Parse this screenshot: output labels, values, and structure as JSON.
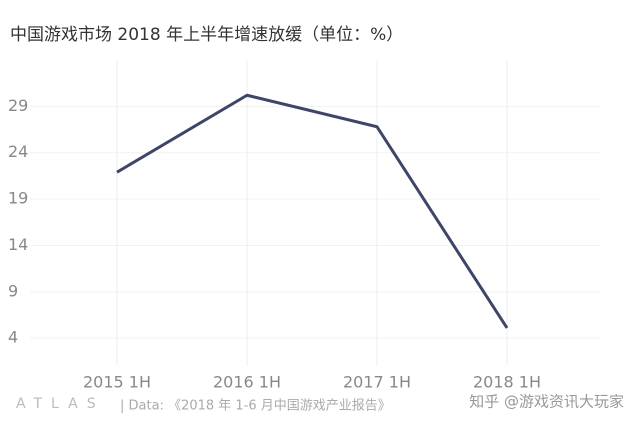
{
  "chart_data": {
    "type": "line",
    "title": "中国游戏市场 2018 年上半年增速放缓（单位：%）",
    "categories": [
      "2015 1H",
      "2016 1H",
      "2017 1H",
      "2018 1H"
    ],
    "values": [
      21.9,
      30.2,
      26.8,
      5.1
    ],
    "color": "#3f4568",
    "ylim": [
      1,
      34
    ],
    "yticks": [
      4,
      9,
      14,
      19,
      24,
      29
    ],
    "grid": true,
    "logo": "ATLAS",
    "source": "| Data: 《2018 年 1-6 月中国游戏产业报告》",
    "watermark": "知乎 @游戏资讯大玩家"
  }
}
